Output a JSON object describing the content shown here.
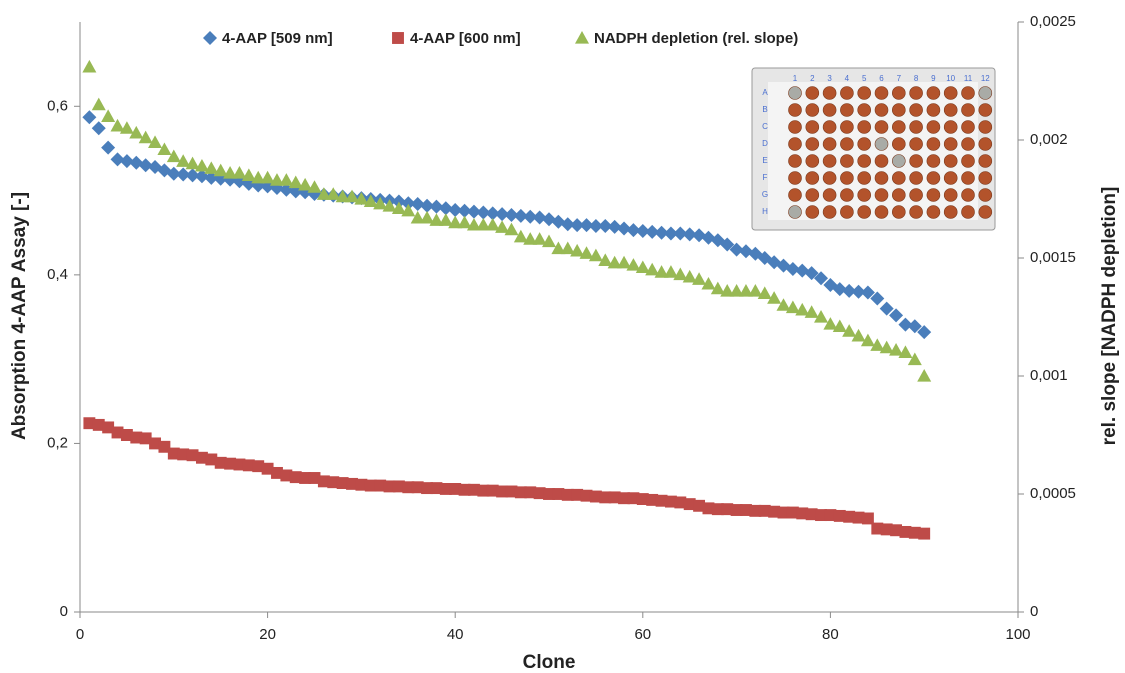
{
  "chart_data": {
    "type": "scatter",
    "x_label": "Clone",
    "y_label": "Absorption 4-AAP Assay [-]",
    "y2_label": "rel. slope [NADPH depletion]",
    "xlim": [
      0,
      100
    ],
    "xticks": [
      0,
      20,
      40,
      60,
      80,
      100
    ],
    "ylim": [
      0,
      0.7
    ],
    "yticks": [
      0,
      {
        "value": 0.2,
        "label": "0,2"
      },
      {
        "value": 0.4,
        "label": "0,4"
      },
      {
        "value": 0.6,
        "label": "0,6"
      }
    ],
    "y2lim": [
      0,
      0.0025
    ],
    "y2ticks": [
      0,
      {
        "value": 0.0005,
        "label": "0,0005"
      },
      {
        "value": 0.001,
        "label": "0,001"
      },
      {
        "value": 0.0015,
        "label": "0,0015"
      },
      {
        "value": 0.002,
        "label": "0,002"
      },
      {
        "value": 0.0025,
        "label": "0,0025"
      }
    ],
    "grid": false,
    "legend": "top",
    "x": [
      1,
      2,
      3,
      4,
      5,
      6,
      7,
      8,
      9,
      10,
      11,
      12,
      13,
      14,
      15,
      16,
      17,
      18,
      19,
      20,
      21,
      22,
      23,
      24,
      25,
      26,
      27,
      28,
      29,
      30,
      31,
      32,
      33,
      34,
      35,
      36,
      37,
      38,
      39,
      40,
      41,
      42,
      43,
      44,
      45,
      46,
      47,
      48,
      49,
      50,
      51,
      52,
      53,
      54,
      55,
      56,
      57,
      58,
      59,
      60,
      61,
      62,
      63,
      64,
      65,
      66,
      67,
      68,
      69,
      70,
      71,
      72,
      73,
      74,
      75,
      76,
      77,
      78,
      79,
      80,
      81,
      82,
      83,
      84,
      85,
      86,
      87,
      88,
      89,
      90
    ],
    "series": [
      {
        "name": "4-AAP [509 nm]",
        "color": "#4a7ebb",
        "marker": "diamond",
        "values": [
          0.587,
          0.574,
          0.551,
          0.537,
          0.535,
          0.533,
          0.53,
          0.528,
          0.524,
          0.52,
          0.519,
          0.518,
          0.517,
          0.515,
          0.514,
          0.513,
          0.511,
          0.508,
          0.506,
          0.505,
          0.503,
          0.501,
          0.499,
          0.498,
          0.496,
          0.495,
          0.494,
          0.493,
          0.492,
          0.491,
          0.49,
          0.489,
          0.488,
          0.487,
          0.485,
          0.484,
          0.482,
          0.481,
          0.479,
          0.477,
          0.476,
          0.475,
          0.474,
          0.473,
          0.472,
          0.471,
          0.47,
          0.469,
          0.468,
          0.466,
          0.463,
          0.46,
          0.459,
          0.459,
          0.458,
          0.458,
          0.457,
          0.455,
          0.453,
          0.452,
          0.451,
          0.45,
          0.449,
          0.449,
          0.448,
          0.447,
          0.444,
          0.441,
          0.436,
          0.43,
          0.428,
          0.425,
          0.42,
          0.415,
          0.411,
          0.407,
          0.405,
          0.402,
          0.396,
          0.388,
          0.383,
          0.381,
          0.38,
          0.379,
          0.372,
          0.36,
          0.352,
          0.341,
          0.339,
          0.332
        ]
      },
      {
        "name": "4-AAP [600 nm]",
        "color": "#be4b48",
        "marker": "square",
        "values": [
          0.224,
          0.222,
          0.219,
          0.213,
          0.21,
          0.207,
          0.206,
          0.2,
          0.196,
          0.188,
          0.187,
          0.186,
          0.183,
          0.181,
          0.177,
          0.176,
          0.175,
          0.174,
          0.173,
          0.17,
          0.165,
          0.162,
          0.16,
          0.159,
          0.159,
          0.155,
          0.154,
          0.153,
          0.152,
          0.151,
          0.15,
          0.15,
          0.149,
          0.149,
          0.148,
          0.148,
          0.147,
          0.147,
          0.146,
          0.146,
          0.145,
          0.145,
          0.144,
          0.144,
          0.143,
          0.143,
          0.142,
          0.142,
          0.141,
          0.14,
          0.14,
          0.139,
          0.139,
          0.138,
          0.137,
          0.136,
          0.136,
          0.135,
          0.135,
          0.134,
          0.133,
          0.132,
          0.131,
          0.13,
          0.128,
          0.126,
          0.123,
          0.122,
          0.122,
          0.121,
          0.121,
          0.12,
          0.12,
          0.119,
          0.118,
          0.118,
          0.117,
          0.116,
          0.115,
          0.115,
          0.114,
          0.113,
          0.112,
          0.111,
          0.099,
          0.098,
          0.097,
          0.095,
          0.094,
          0.093
        ]
      },
      {
        "name": "NADPH depletion (rel. slope)",
        "color": "#98b954",
        "marker": "triangle",
        "axis": "y2",
        "values": [
          0.00231,
          0.00215,
          0.0021,
          0.00206,
          0.00205,
          0.00203,
          0.00201,
          0.00199,
          0.00196,
          0.00193,
          0.00191,
          0.0019,
          0.00189,
          0.00188,
          0.00187,
          0.00186,
          0.00186,
          0.00185,
          0.00184,
          0.00184,
          0.00183,
          0.00183,
          0.00182,
          0.00181,
          0.0018,
          0.00177,
          0.00177,
          0.00176,
          0.00176,
          0.00175,
          0.00174,
          0.00173,
          0.00172,
          0.00171,
          0.0017,
          0.00167,
          0.00167,
          0.00166,
          0.00166,
          0.00165,
          0.00165,
          0.00164,
          0.00164,
          0.00164,
          0.00163,
          0.00162,
          0.00159,
          0.00158,
          0.00158,
          0.00157,
          0.00154,
          0.00154,
          0.00153,
          0.00152,
          0.00151,
          0.00149,
          0.00148,
          0.00148,
          0.00147,
          0.00146,
          0.00145,
          0.00144,
          0.00144,
          0.00143,
          0.00142,
          0.00141,
          0.00139,
          0.00137,
          0.00136,
          0.00136,
          0.00136,
          0.00136,
          0.00135,
          0.00133,
          0.0013,
          0.00129,
          0.00128,
          0.00127,
          0.00125,
          0.00122,
          0.00121,
          0.00119,
          0.00117,
          0.00115,
          0.00113,
          0.00112,
          0.00111,
          0.0011,
          0.00107,
          0.001
        ]
      }
    ],
    "inset": {
      "rows": [
        "A",
        "B",
        "C",
        "D",
        "E",
        "F",
        "G",
        "H"
      ],
      "columns": [
        1,
        2,
        3,
        4,
        5,
        6,
        7,
        8,
        9,
        10,
        11,
        12
      ]
    }
  }
}
